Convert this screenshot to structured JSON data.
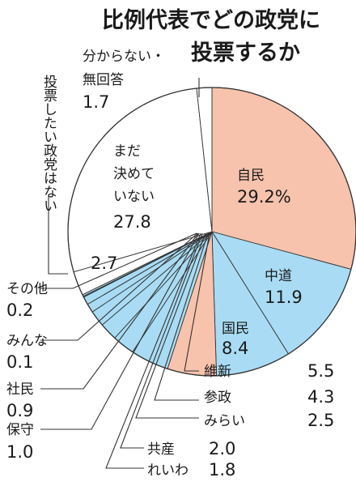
{
  "chart_data": {
    "type": "pie",
    "title_line1": "比例代表でどの政党に",
    "title_line2": "投票するか",
    "unit": "%",
    "slices": [
      {
        "key": "jimin",
        "name": "自民",
        "value": 29.2,
        "value_text": "29.2%",
        "color": "#f7c3ad"
      },
      {
        "key": "chudo",
        "name": "中道",
        "value": 11.9,
        "value_text": "11.9",
        "color": "#a9dcf4"
      },
      {
        "key": "kokumin",
        "name": "国民",
        "value": 8.4,
        "value_text": "8.4",
        "color": "#a9dcf4"
      },
      {
        "key": "ishin",
        "name": "維新",
        "value": 5.5,
        "value_text": "5.5",
        "color": "#f7c3ad"
      },
      {
        "key": "sansei",
        "name": "参政",
        "value": 4.3,
        "value_text": "4.3",
        "color": "#a9dcf4"
      },
      {
        "key": "mirai",
        "name": "みらい",
        "value": 2.5,
        "value_text": "2.5",
        "color": "#a9dcf4"
      },
      {
        "key": "kyosan",
        "name": "共産",
        "value": 2.0,
        "value_text": "2.0",
        "color": "#a9dcf4"
      },
      {
        "key": "reiwa",
        "name": "れいわ",
        "value": 1.8,
        "value_text": "1.8",
        "color": "#a9dcf4"
      },
      {
        "key": "hoshu",
        "name": "保守",
        "value": 1.0,
        "value_text": "1.0",
        "color": "#a9dcf4"
      },
      {
        "key": "shamin",
        "name": "社民",
        "value": 0.9,
        "value_text": "0.9",
        "color": "#a9dcf4"
      },
      {
        "key": "minna",
        "name": "みんな",
        "value": 0.1,
        "value_text": "0.1",
        "color": "#a9dcf4"
      },
      {
        "key": "sonota",
        "name": "その他",
        "value": 0.2,
        "value_text": "0.2",
        "color": "#a9dcf4"
      },
      {
        "key": "nai",
        "name": "投票したい政党はない",
        "value": 2.7,
        "value_text": "2.7",
        "color": "#ffffff"
      },
      {
        "key": "mada",
        "name": "まだ決めていない",
        "value": 27.8,
        "value_text": "27.8",
        "color": "#ffffff"
      },
      {
        "key": "wakaranai",
        "name": "分からない・無回答",
        "value": 1.7,
        "value_text": "1.7",
        "color": "#ffffff"
      }
    ],
    "text": {
      "jimin": "自民",
      "chudo": "中道",
      "kokumin": "国民",
      "mada_1": "まだ",
      "mada_2": "決めて",
      "mada_3": "いない",
      "wakaranai_1": "分からない・",
      "wakaranai_2": "無回答",
      "nai_vertical": "投票したい政党はない",
      "ishin": "維新",
      "sansei": "参政",
      "mirai": "みらい",
      "kyosan": "共産",
      "reiwa": "れいわ",
      "hoshu": "保守",
      "shamin": "社民",
      "minna": "みんな",
      "sonota": "その他"
    }
  }
}
